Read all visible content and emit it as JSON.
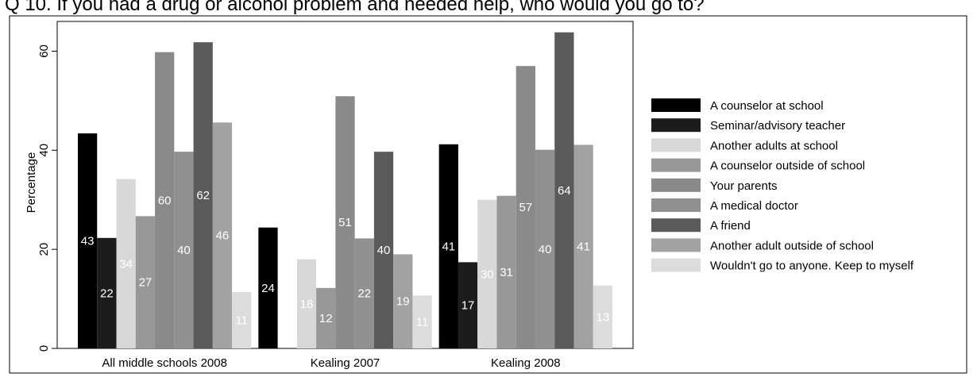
{
  "chart_title": "Q 10. If you had a drug or alcohol problem and needed help, who would you go to?",
  "chart_data": {
    "type": "bar",
    "title": "Q 10. If you had a drug or alcohol problem and needed help, who would you go to?",
    "xlabel": "",
    "ylabel": "Percentage",
    "ylim": [
      0,
      66
    ],
    "yticks": [
      0,
      20,
      40,
      60
    ],
    "grid": false,
    "legend_position": "right",
    "categories": [
      "All middle schools 2008",
      "Kealing 2007",
      "Kealing 2008"
    ],
    "series": [
      {
        "name": "A counselor at school",
        "color": "#000000",
        "values": [
          43.4,
          24.4,
          41.2
        ],
        "labels": [
          "43",
          "24",
          "41"
        ]
      },
      {
        "name": "Seminar/advisory teacher",
        "color": "#1c1c1c",
        "values": [
          22.3,
          null,
          17.4
        ],
        "labels": [
          "22",
          "",
          "17"
        ]
      },
      {
        "name": "Another adults at school",
        "color": "#d8d8d8",
        "values": [
          34.2,
          18.0,
          30.0
        ],
        "labels": [
          "34",
          "18",
          "30"
        ]
      },
      {
        "name": "A counselor outside of school",
        "color": "#989898",
        "values": [
          26.7,
          12.2,
          30.8
        ],
        "labels": [
          "27",
          "12",
          "31"
        ]
      },
      {
        "name": "Your parents",
        "color": "#8a8a8a",
        "values": [
          59.8,
          50.9,
          57.0
        ],
        "labels": [
          "60",
          "51",
          "57"
        ]
      },
      {
        "name": "A medical doctor",
        "color": "#909090",
        "values": [
          39.7,
          22.2,
          40.1
        ],
        "labels": [
          "40",
          "22",
          "40"
        ]
      },
      {
        "name": "A friend",
        "color": "#5a5a5a",
        "values": [
          61.8,
          39.7,
          63.8
        ],
        "labels": [
          "62",
          "40",
          "64"
        ]
      },
      {
        "name": "Another adult outside of school",
        "color": "#a2a2a2",
        "values": [
          45.6,
          19.0,
          41.1
        ],
        "labels": [
          "46",
          "19",
          "41"
        ]
      },
      {
        "name": "Wouldn't go to anyone. Keep to myself",
        "color": "#dcdcdc",
        "values": [
          11.4,
          10.7,
          12.7
        ],
        "labels": [
          "11",
          "11",
          "13"
        ]
      }
    ]
  }
}
